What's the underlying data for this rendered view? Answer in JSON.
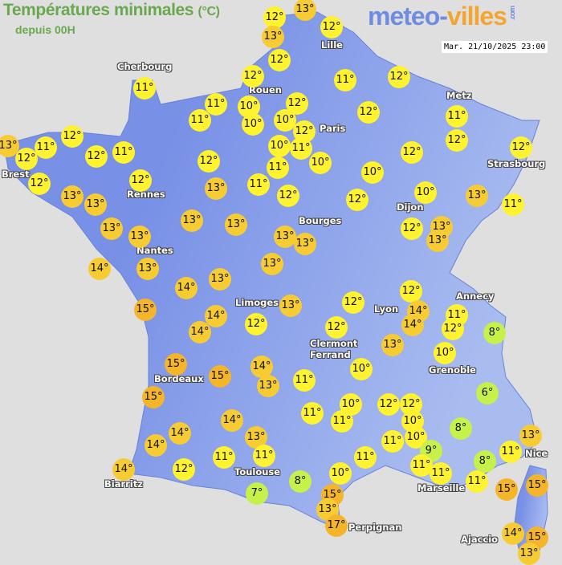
{
  "header": {
    "title": "Températures minimales",
    "unit": "(°C)",
    "subtitle": "depuis 00H"
  },
  "logo": {
    "part1": "meteo-",
    "part2": "villes",
    "suffix": ".com"
  },
  "timestamp": "Mar. 21/10/2025 23:00",
  "colors": {
    "cold": "#c6f04a",
    "mild": "#fff22e",
    "warm": "#f7cc33",
    "hot": "#f5b52a",
    "land_west": "#7890e6",
    "land_east": "#a9bcf0",
    "sea": "#e0dfdf"
  },
  "cities": [
    "Cherbourg",
    "Lille",
    "Rouen",
    "Paris",
    "Metz",
    "Brest",
    "Rennes",
    "Strasbourg",
    "Dijon",
    "Bourges",
    "Nantes",
    "Limoges",
    "Lyon",
    "Annecy",
    "Clermont Ferrand",
    "Grenoble",
    "Bordeaux",
    "Nice",
    "Toulouse",
    "Marseille",
    "Biarritz",
    "Perpignan",
    "Ajaccio"
  ],
  "temperatures": [
    12,
    13,
    13,
    12,
    12,
    11,
    12,
    11,
    10,
    11,
    10,
    12,
    10,
    12,
    10,
    11,
    10,
    11,
    12,
    12,
    11,
    12,
    12,
    10,
    12,
    11,
    13,
    10,
    12,
    13,
    13,
    12,
    12,
    11,
    11,
    12,
    13,
    13,
    12,
    11,
    12,
    12,
    11,
    12,
    13,
    13,
    12,
    13,
    13,
    13,
    13,
    14,
    13,
    14,
    13,
    13,
    13,
    13,
    15,
    14,
    14,
    12,
    13,
    15,
    15,
    14,
    13,
    15,
    14,
    13,
    14,
    14,
    11,
    11,
    12,
    14,
    7,
    12,
    12,
    13,
    12,
    14,
    14,
    11,
    12,
    10,
    8,
    10,
    11,
    11,
    10,
    11,
    12,
    12,
    10,
    10,
    11,
    11,
    10,
    8,
    8,
    6,
    9,
    11,
    11,
    11,
    8,
    11,
    13,
    15,
    15,
    15,
    13,
    17,
    14,
    15,
    13
  ]
}
